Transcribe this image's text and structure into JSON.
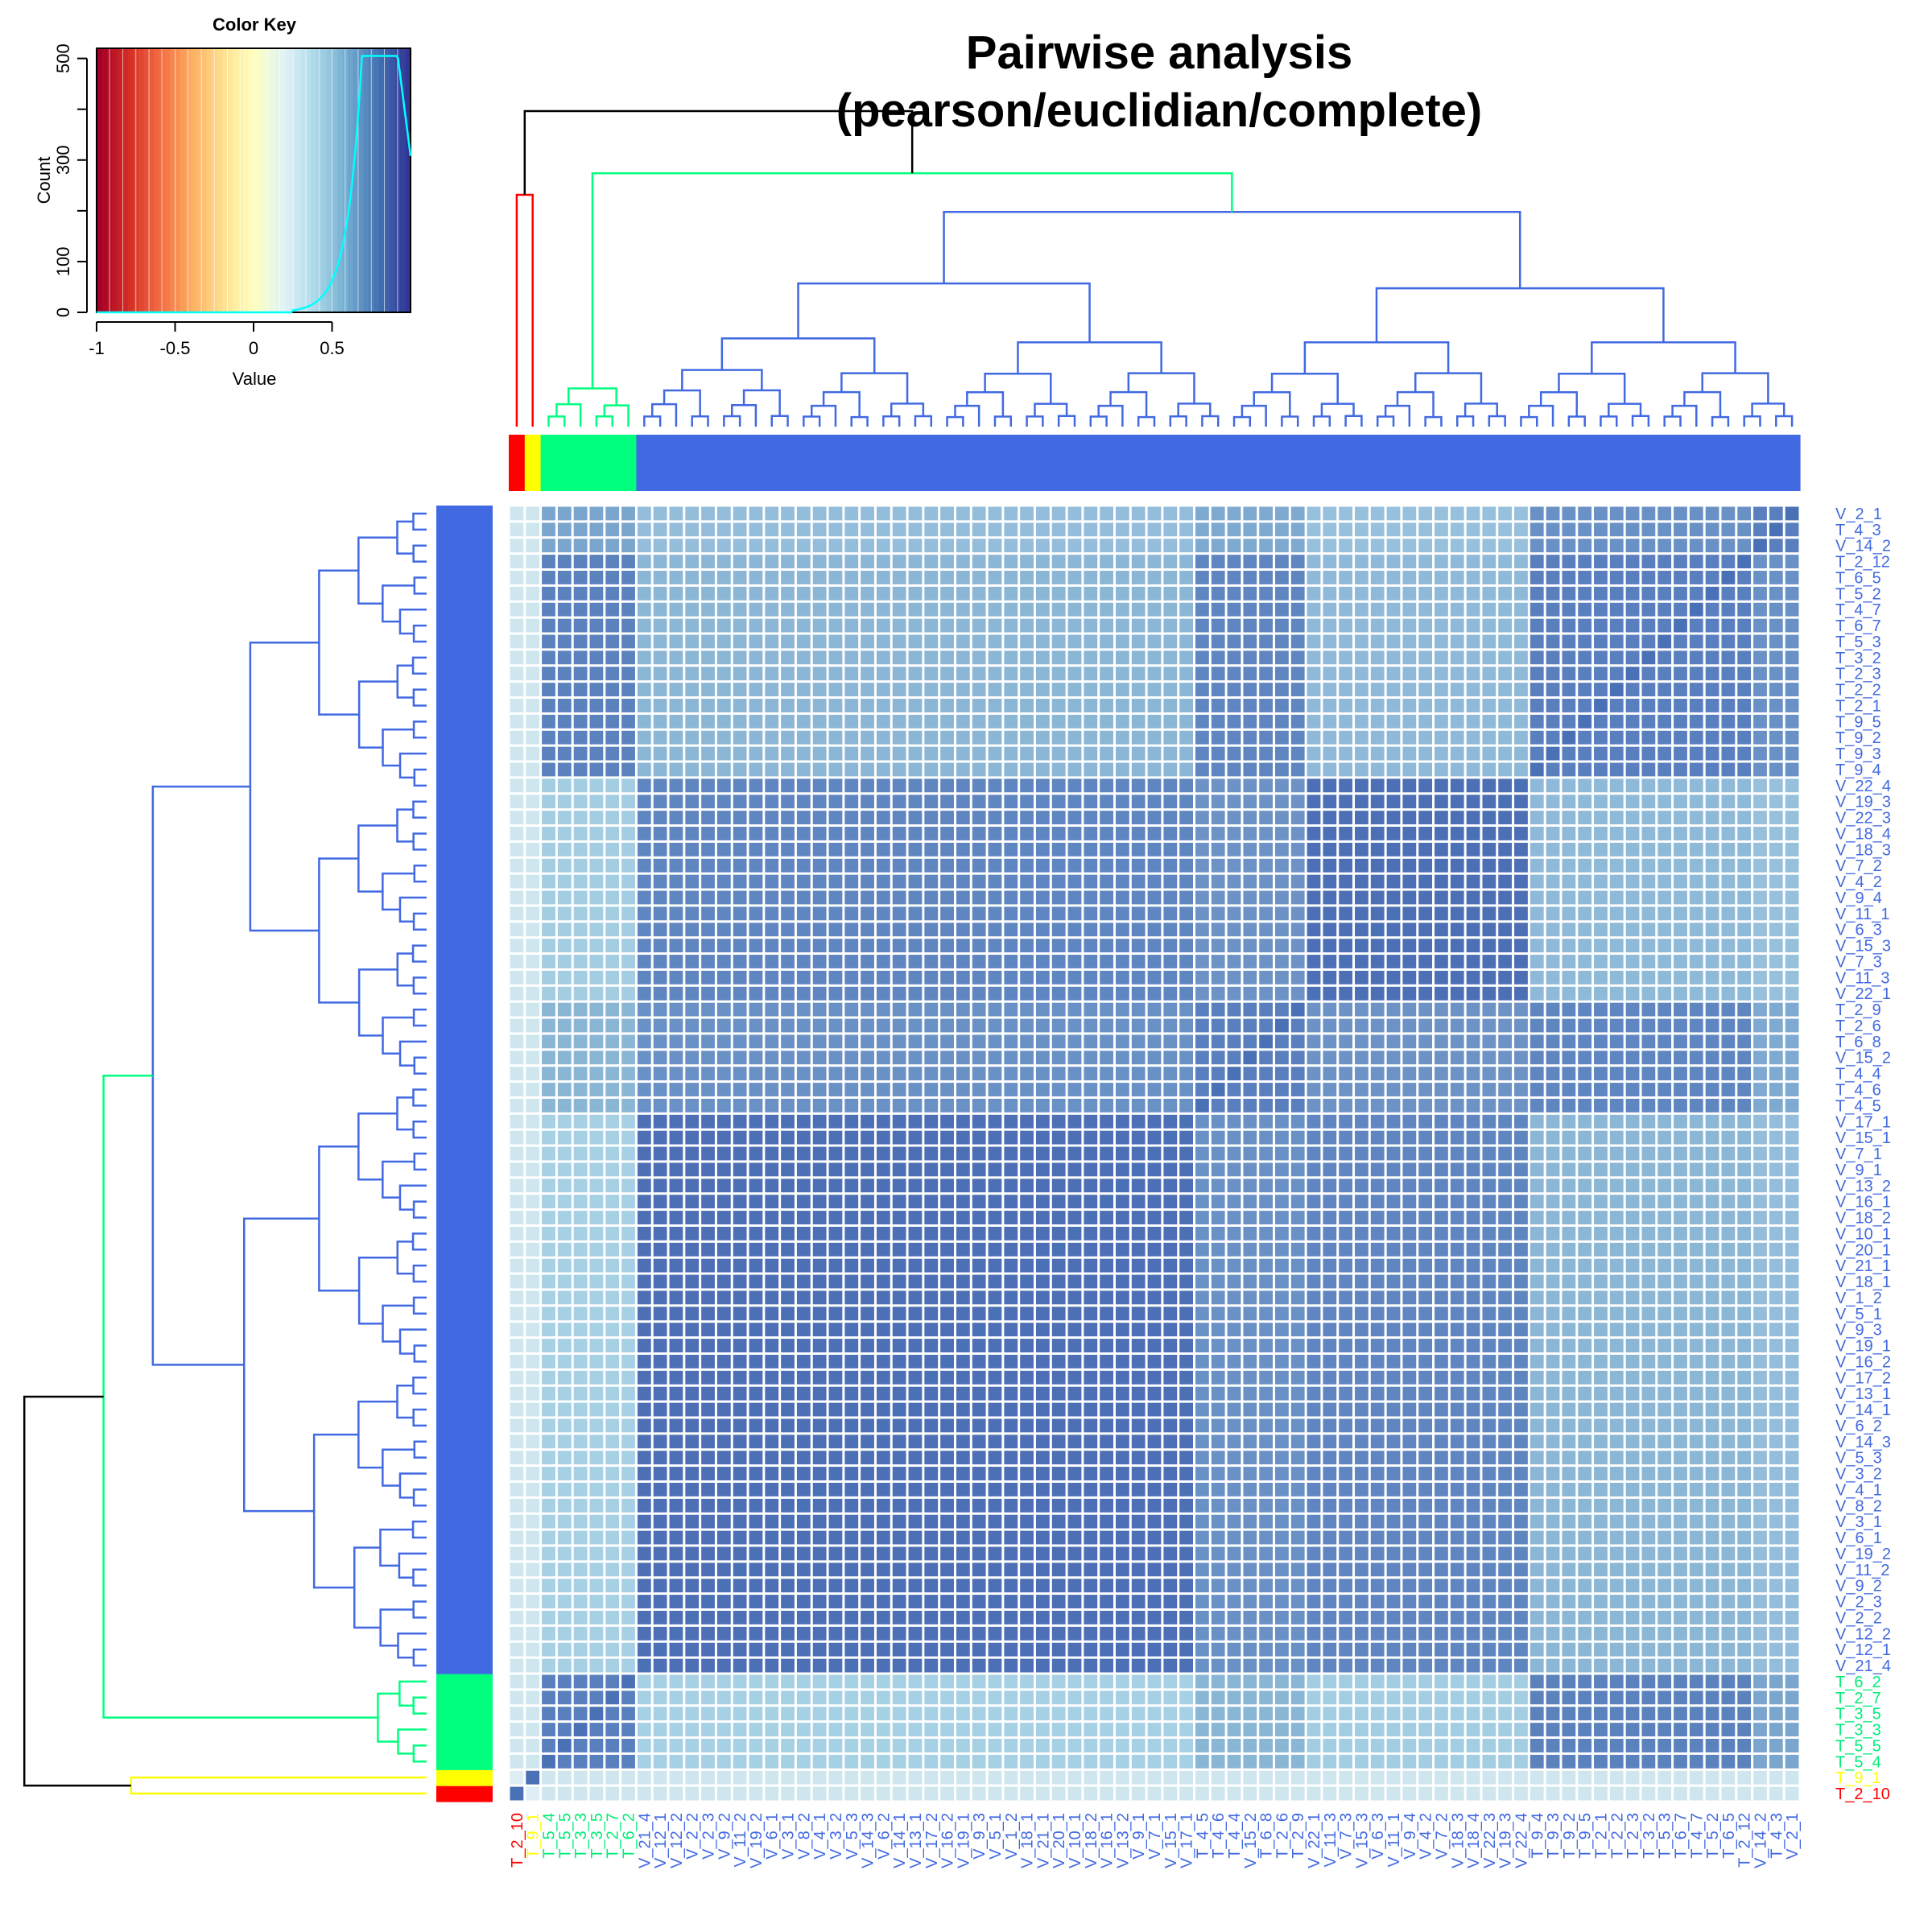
{
  "title_line1": "Pairwise analysis",
  "title_line2": "(pearson/euclidian/complete)",
  "colors": {
    "group_red": "#ff0000",
    "group_yellow": "#ffff00",
    "group_green": "#00ff7f",
    "group_blue": "#4169e1",
    "histogram_line": "#00ffff",
    "top_link": "#000000"
  },
  "color_key": {
    "title": "Color Key",
    "xlabel": "Value",
    "ylabel": "Count",
    "x_ticks": [
      "-1",
      "-0.5",
      "0",
      "0.5"
    ],
    "y_ticks": [
      "0",
      "100",
      "300",
      "500"
    ],
    "palette": [
      "#a50026",
      "#d73027",
      "#f46d43",
      "#fdae61",
      "#fee090",
      "#ffffbf",
      "#e0f3f8",
      "#abd9e9",
      "#74add1",
      "#4575b4",
      "#313695"
    ]
  },
  "chart_data": {
    "type": "heatmap",
    "order_bottom_to_top": [
      "T_2_10",
      "T_9_1",
      "T_5_4",
      "T_5_5",
      "T_3_3",
      "T_3_5",
      "T_2_7",
      "T_6_2",
      "V_21_4",
      "V_12_1",
      "V_12_2",
      "V_2_2",
      "V_2_3",
      "V_9_2",
      "V_11_2",
      "V_19_2",
      "V_6_1",
      "V_3_1",
      "V_8_2",
      "V_4_1",
      "V_3_2",
      "V_5_3",
      "V_14_3",
      "V_6_2",
      "V_14_1",
      "V_13_1",
      "V_17_2",
      "V_16_2",
      "V_19_1",
      "V_9_3",
      "V_5_1",
      "V_1_2",
      "V_18_1",
      "V_21_1",
      "V_20_1",
      "V_10_1",
      "V_18_2",
      "V_16_1",
      "V_13_2",
      "V_9_1",
      "V_7_1",
      "V_15_1",
      "V_17_1",
      "T_4_5",
      "T_4_6",
      "T_4_4",
      "V_15_2",
      "T_6_8",
      "T_2_6",
      "T_2_9",
      "V_22_1",
      "V_11_3",
      "V_7_3",
      "V_15_3",
      "V_6_3",
      "V_11_1",
      "V_9_4",
      "V_4_2",
      "V_7_2",
      "V_18_3",
      "V_18_4",
      "V_22_3",
      "V_19_3",
      "V_22_4",
      "T_9_4",
      "T_9_3",
      "T_9_2",
      "T_9_5",
      "T_2_1",
      "T_2_2",
      "T_2_3",
      "T_3_2",
      "T_5_3",
      "T_6_7",
      "T_4_7",
      "T_5_2",
      "T_6_5",
      "T_2_12",
      "V_14_2",
      "T_4_3",
      "V_2_1"
    ],
    "group_counts": {
      "red": 1,
      "yellow": 1,
      "green": 6,
      "blue": 73
    }
  }
}
